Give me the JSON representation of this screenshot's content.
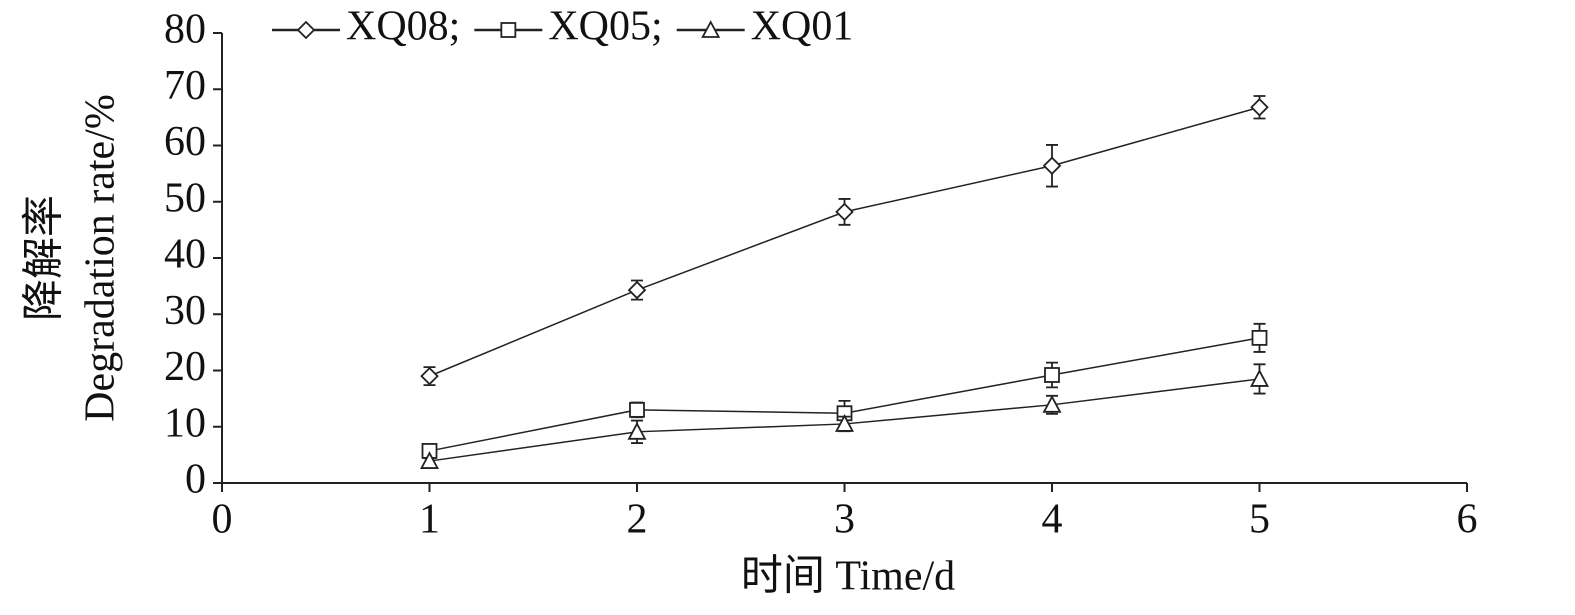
{
  "chart_data": {
    "type": "line",
    "x_label": "时间 Time/d",
    "y_label": [
      "降解率",
      "Degradation rate/%"
    ],
    "x": [
      1,
      2,
      3,
      4,
      5
    ],
    "xlim": [
      0,
      6
    ],
    "xticks": [
      0,
      1,
      2,
      3,
      4,
      5,
      6
    ],
    "ylim": [
      0,
      80
    ],
    "yticks": [
      0,
      10,
      20,
      30,
      40,
      50,
      60,
      70,
      80
    ],
    "grid": false,
    "legend": "top",
    "series": [
      {
        "name": "XQ08;",
        "color": "#222222",
        "marker": "diamond",
        "values": [
          19.0,
          34.3,
          48.2,
          56.4,
          66.8
        ],
        "errors": [
          1.6,
          1.7,
          2.3,
          3.7,
          2.0
        ]
      },
      {
        "name": "XQ05;",
        "color": "#222222",
        "marker": "square",
        "values": [
          5.7,
          13.0,
          12.4,
          19.2,
          25.8
        ],
        "errors": [
          0.5,
          1.3,
          2.2,
          2.2,
          2.5
        ]
      },
      {
        "name": "XQ01",
        "color": "#222222",
        "marker": "triangle",
        "values": [
          3.9,
          9.1,
          10.5,
          13.9,
          18.5
        ],
        "errors": [
          0.5,
          2.0,
          1.3,
          1.6,
          2.6
        ]
      }
    ]
  }
}
